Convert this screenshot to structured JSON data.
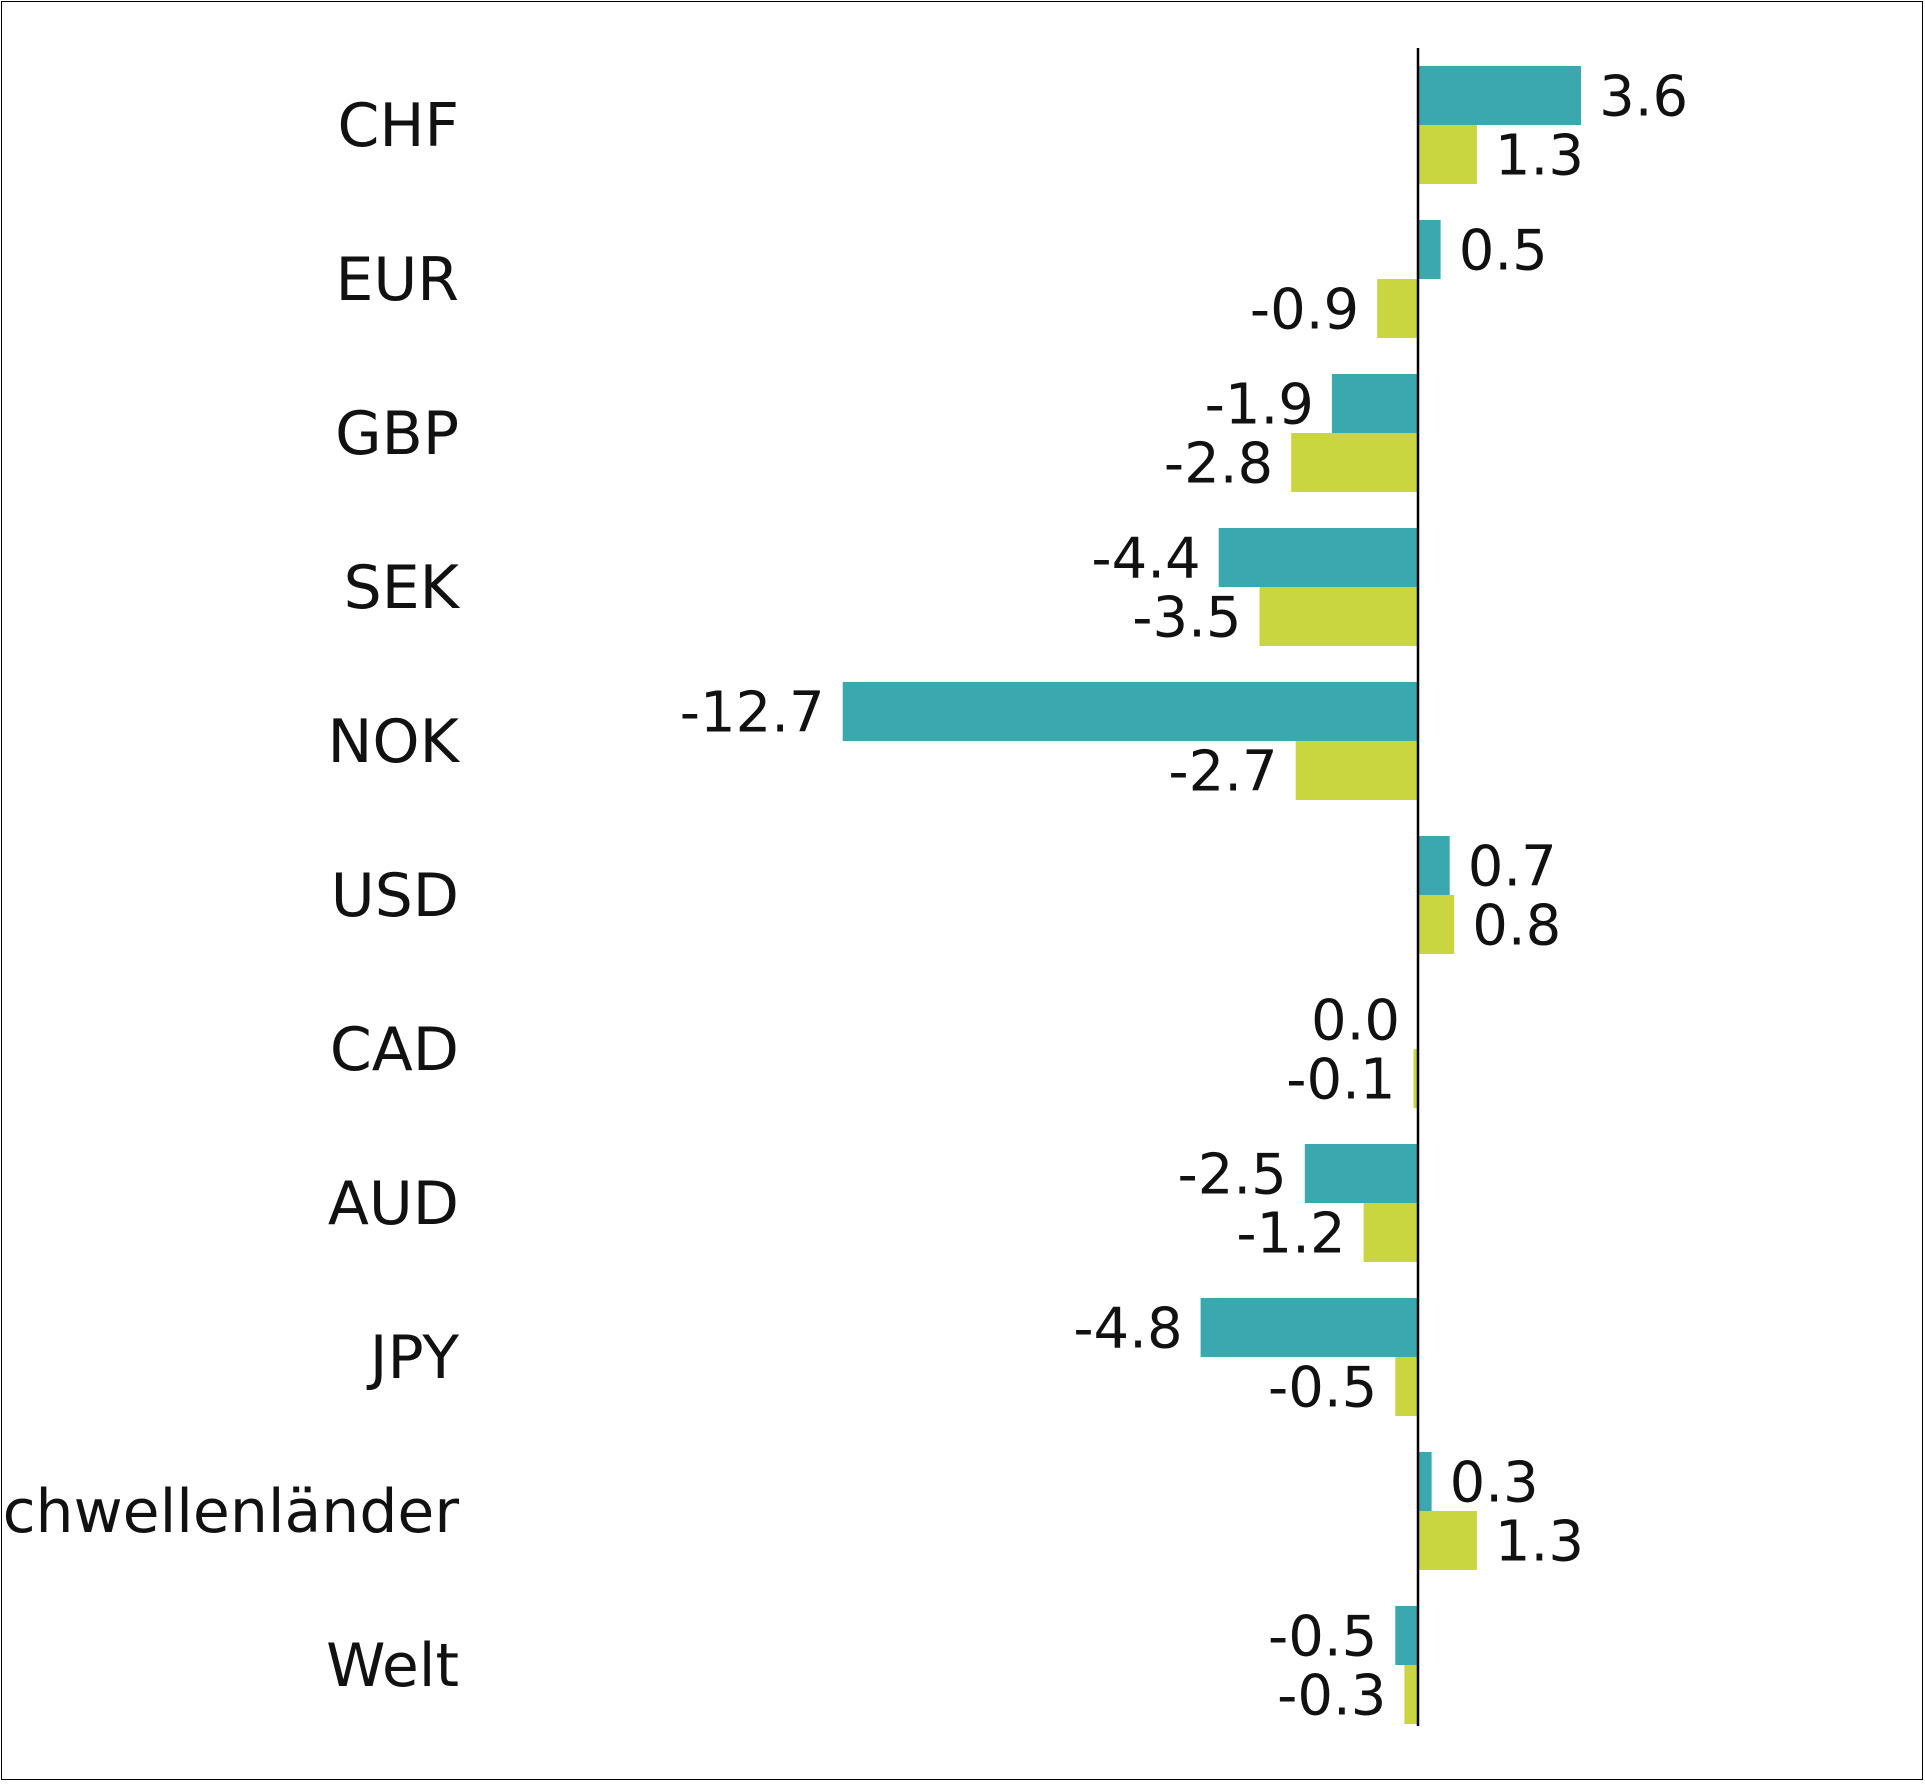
{
  "chart_data": {
    "type": "bar",
    "orientation": "horizontal",
    "categories": [
      "CHF",
      "EUR",
      "GBP",
      "SEK",
      "NOK",
      "USD",
      "CAD",
      "AUD",
      "JPY",
      "Schwellenländer",
      "Welt"
    ],
    "series": [
      {
        "color": "#3aa8ae",
        "values": [
          3.6,
          0.5,
          -1.9,
          -4.4,
          -12.7,
          0.7,
          0.0,
          -2.5,
          -4.8,
          0.3,
          -0.5
        ],
        "labels": [
          "3.6",
          "0.5",
          "-1.9",
          "-4.4",
          "-12.7",
          "0.7",
          "0.0",
          "-2.5",
          "-4.8",
          "0.3",
          "-0.5"
        ]
      },
      {
        "color": "#c9d640",
        "values": [
          1.3,
          -0.9,
          -2.8,
          -3.5,
          -2.7,
          0.8,
          -0.1,
          -1.2,
          -0.5,
          1.3,
          -0.3
        ],
        "labels": [
          "1.3",
          "-0.9",
          "-2.8",
          "-3.5",
          "-2.7",
          "0.8",
          "-0.1",
          "-1.2",
          "-0.5",
          "1.3",
          "-0.3"
        ]
      }
    ],
    "xlim": [
      -13.0,
      4.0
    ],
    "grid": false,
    "legend": "none",
    "data_labels": true
  }
}
